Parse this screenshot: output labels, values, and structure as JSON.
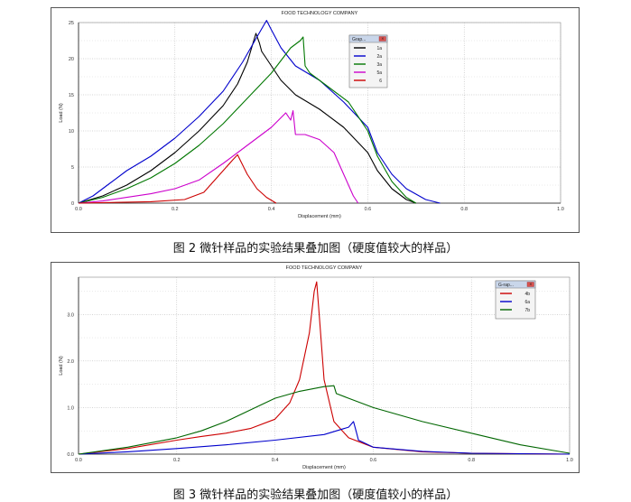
{
  "chart_data": [
    {
      "type": "line",
      "title": "FOOD TECHNOLOGY COMPANY",
      "xlabel": "Displacement (mm)",
      "ylabel": "Load (N)",
      "xlim": [
        0.0,
        1.0
      ],
      "ylim": [
        0,
        25
      ],
      "x_ticks": [
        "0.0",
        "0.2",
        "0.4",
        "0.6",
        "0.8",
        "1.0"
      ],
      "y_ticks": [
        "0",
        "5",
        "10",
        "15",
        "20",
        "25"
      ],
      "grid": true,
      "legend_title": "Grap...",
      "legend_position": "top-right",
      "caption": "图 2  微针样品的实验结果叠加图（硬度值较大的样品）",
      "series": [
        {
          "name": "1a",
          "color": "#000000",
          "points": [
            [
              0.0,
              0
            ],
            [
              0.05,
              1
            ],
            [
              0.1,
              2.5
            ],
            [
              0.15,
              4.5
            ],
            [
              0.2,
              7
            ],
            [
              0.25,
              10
            ],
            [
              0.3,
              13.5
            ],
            [
              0.33,
              16.5
            ],
            [
              0.35,
              19.5
            ],
            [
              0.368,
              23.5
            ],
            [
              0.375,
              22.2
            ],
            [
              0.38,
              21
            ],
            [
              0.39,
              20
            ],
            [
              0.42,
              17
            ],
            [
              0.45,
              15
            ],
            [
              0.5,
              13
            ],
            [
              0.55,
              10.5
            ],
            [
              0.6,
              7
            ],
            [
              0.62,
              4.5
            ],
            [
              0.65,
              2
            ],
            [
              0.68,
              0.5
            ],
            [
              0.7,
              0
            ]
          ]
        },
        {
          "name": "2a",
          "color": "#0000cc",
          "points": [
            [
              0.0,
              0
            ],
            [
              0.03,
              1
            ],
            [
              0.06,
              2.5
            ],
            [
              0.1,
              4.5
            ],
            [
              0.15,
              6.5
            ],
            [
              0.2,
              9
            ],
            [
              0.25,
              12
            ],
            [
              0.3,
              15.5
            ],
            [
              0.34,
              19.5
            ],
            [
              0.37,
              23
            ],
            [
              0.39,
              25.3
            ],
            [
              0.4,
              24
            ],
            [
              0.42,
              21.5
            ],
            [
              0.45,
              19
            ],
            [
              0.5,
              17
            ],
            [
              0.55,
              14
            ],
            [
              0.6,
              10.5
            ],
            [
              0.62,
              7
            ],
            [
              0.65,
              4
            ],
            [
              0.68,
              2
            ],
            [
              0.72,
              0.5
            ],
            [
              0.75,
              0
            ]
          ]
        },
        {
          "name": "3a",
          "color": "#007700",
          "points": [
            [
              0.0,
              0
            ],
            [
              0.05,
              0.8
            ],
            [
              0.1,
              2
            ],
            [
              0.15,
              3.5
            ],
            [
              0.2,
              5.5
            ],
            [
              0.25,
              8
            ],
            [
              0.3,
              11
            ],
            [
              0.35,
              14.5
            ],
            [
              0.4,
              18
            ],
            [
              0.44,
              21.5
            ],
            [
              0.46,
              22.5
            ],
            [
              0.466,
              23
            ],
            [
              0.47,
              19
            ],
            [
              0.48,
              18
            ],
            [
              0.52,
              16
            ],
            [
              0.56,
              14
            ],
            [
              0.6,
              10
            ],
            [
              0.62,
              6.5
            ],
            [
              0.65,
              3
            ],
            [
              0.68,
              0.8
            ],
            [
              0.7,
              0
            ]
          ]
        },
        {
          "name": "5a",
          "color": "#cc00cc",
          "points": [
            [
              0.0,
              0
            ],
            [
              0.05,
              0.3
            ],
            [
              0.1,
              0.8
            ],
            [
              0.15,
              1.3
            ],
            [
              0.2,
              2
            ],
            [
              0.25,
              3.2
            ],
            [
              0.3,
              5.5
            ],
            [
              0.35,
              8
            ],
            [
              0.4,
              10.5
            ],
            [
              0.43,
              12.5
            ],
            [
              0.44,
              11.5
            ],
            [
              0.445,
              12.8
            ],
            [
              0.45,
              9.5
            ],
            [
              0.47,
              9.5
            ],
            [
              0.5,
              8.8
            ],
            [
              0.53,
              7
            ],
            [
              0.55,
              4
            ],
            [
              0.57,
              1
            ],
            [
              0.58,
              0
            ]
          ]
        },
        {
          "name": "6",
          "color": "#cc0000",
          "points": [
            [
              0.0,
              0
            ],
            [
              0.15,
              0.2
            ],
            [
              0.22,
              0.5
            ],
            [
              0.26,
              1.5
            ],
            [
              0.28,
              3
            ],
            [
              0.3,
              4.5
            ],
            [
              0.32,
              6
            ],
            [
              0.33,
              6.7
            ],
            [
              0.335,
              6
            ],
            [
              0.35,
              4
            ],
            [
              0.37,
              2
            ],
            [
              0.39,
              0.8
            ],
            [
              0.41,
              0
            ]
          ]
        }
      ]
    },
    {
      "type": "line",
      "title": "FOOD TECHNOLOGY COMPANY",
      "xlabel": "Displacement (mm)",
      "ylabel": "Load (N)",
      "xlim": [
        0.0,
        1.0
      ],
      "ylim": [
        0,
        3.8
      ],
      "x_ticks": [
        "0.0",
        "0.2",
        "0.4",
        "0.6",
        "0.8",
        "1.0"
      ],
      "y_ticks": [
        "0.0",
        "1.0",
        "2.0",
        "3.0"
      ],
      "grid": true,
      "legend_title": "G-rap...",
      "legend_position": "top-right",
      "caption": "图 3  微针样品的实验结果叠加图（硬度值较小的样品）",
      "series": [
        {
          "name": "4b",
          "color": "#cc0000",
          "points": [
            [
              0.0,
              0
            ],
            [
              0.1,
              0.12
            ],
            [
              0.2,
              0.3
            ],
            [
              0.25,
              0.38
            ],
            [
              0.3,
              0.45
            ],
            [
              0.35,
              0.55
            ],
            [
              0.4,
              0.75
            ],
            [
              0.43,
              1.1
            ],
            [
              0.45,
              1.6
            ],
            [
              0.47,
              2.6
            ],
            [
              0.48,
              3.5
            ],
            [
              0.485,
              3.7
            ],
            [
              0.49,
              3.0
            ],
            [
              0.5,
              1.6
            ],
            [
              0.52,
              0.7
            ],
            [
              0.55,
              0.35
            ],
            [
              0.6,
              0.15
            ],
            [
              0.7,
              0.05
            ],
            [
              0.8,
              0.02
            ],
            [
              1.0,
              0
            ]
          ]
        },
        {
          "name": "6a",
          "color": "#0000cc",
          "points": [
            [
              0.0,
              0
            ],
            [
              0.1,
              0.05
            ],
            [
              0.2,
              0.12
            ],
            [
              0.3,
              0.2
            ],
            [
              0.4,
              0.3
            ],
            [
              0.5,
              0.42
            ],
            [
              0.55,
              0.58
            ],
            [
              0.56,
              0.7
            ],
            [
              0.565,
              0.5
            ],
            [
              0.57,
              0.3
            ],
            [
              0.6,
              0.15
            ],
            [
              0.7,
              0.06
            ],
            [
              0.8,
              0.02
            ],
            [
              1.0,
              0
            ]
          ]
        },
        {
          "name": "7b",
          "color": "#006600",
          "points": [
            [
              0.0,
              0
            ],
            [
              0.1,
              0.15
            ],
            [
              0.2,
              0.35
            ],
            [
              0.25,
              0.5
            ],
            [
              0.3,
              0.7
            ],
            [
              0.35,
              0.95
            ],
            [
              0.4,
              1.2
            ],
            [
              0.45,
              1.35
            ],
            [
              0.5,
              1.45
            ],
            [
              0.52,
              1.47
            ],
            [
              0.525,
              1.3
            ],
            [
              0.55,
              1.2
            ],
            [
              0.6,
              1.0
            ],
            [
              0.7,
              0.7
            ],
            [
              0.8,
              0.45
            ],
            [
              0.9,
              0.2
            ],
            [
              1.0,
              0.02
            ]
          ]
        }
      ]
    }
  ],
  "fig1": {
    "caption": "图 2  微针样品的实验结果叠加图（硬度值较大的样品）"
  },
  "fig2": {
    "caption": "图 3  微针样品的实验结果叠加图（硬度值较小的样品）"
  }
}
